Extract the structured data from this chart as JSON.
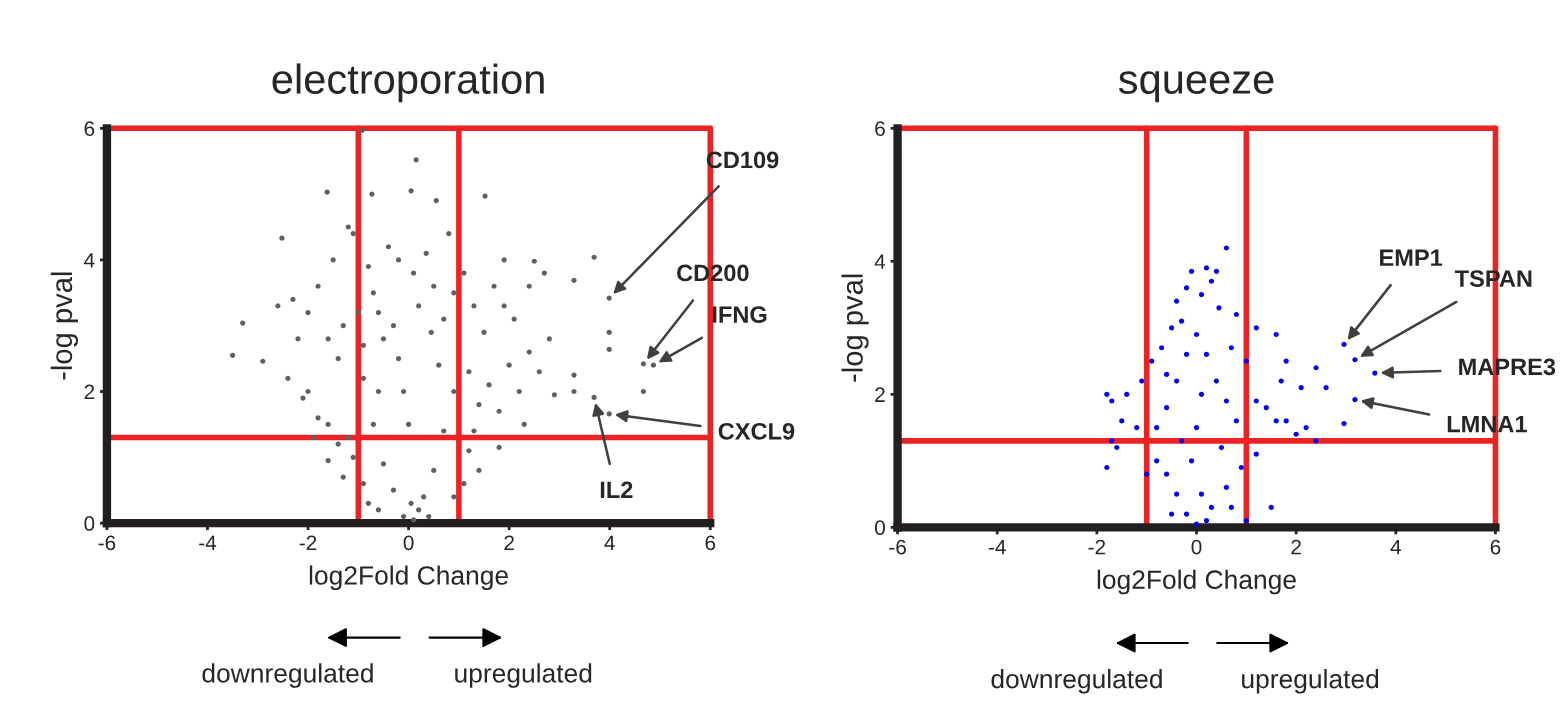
{
  "chart_data": [
    {
      "type": "scatter",
      "title": "electroporation",
      "xlabel": "log2Fold Change",
      "ylabel": "-log pval",
      "xlim": [
        -6,
        6
      ],
      "ylim": [
        0,
        6
      ],
      "xticks": [
        -6,
        -4,
        -2,
        0,
        2,
        4,
        6
      ],
      "yticks": [
        0,
        2,
        4,
        6
      ],
      "grid": false,
      "legend": false,
      "marker": "circle",
      "series": [
        {
          "color": "#606060",
          "x": [
            -0.92,
            0.15,
            -1.62,
            0.05,
            -0.73,
            0.55,
            1.52,
            -2.52,
            -3.3,
            -3.5,
            -2.9,
            3.69,
            2.5,
            3.29,
            3.29,
            3.29,
            2.9,
            3.99,
            3.99,
            4.67,
            1.8,
            3.99,
            4.67,
            4.87,
            3.99,
            3.69,
            -2.6,
            -2.3,
            -2.0,
            -1.8,
            -1.5,
            -1.2,
            -1.1,
            -2.2,
            -2.4,
            -2.0,
            -1.8,
            -2.1,
            -1.6,
            -1.4,
            -1.3,
            -1.6,
            -1.2,
            -1.1,
            -1.6,
            -1.3,
            -0.9,
            -0.8,
            -0.7,
            -0.6,
            -0.5,
            -0.4,
            -0.3,
            -0.2,
            -0.1,
            0.0,
            0.05,
            0.1,
            -0.1,
            0.2,
            -0.3,
            0.3,
            -0.5,
            0.5,
            -0.7,
            0.7,
            -0.9,
            0.9,
            -0.6,
            0.6,
            0.2,
            0.35,
            0.5,
            0.7,
            0.8,
            0.45,
            1.1,
            1.3,
            1.5,
            1.7,
            1.9,
            2.1,
            1.2,
            1.4,
            1.6,
            1.8,
            2.0,
            2.2,
            2.4,
            2.6,
            2.8,
            2.3,
            1.2,
            1.4,
            1.1,
            0.9,
            -0.8,
            -0.6,
            0.4,
            1.3,
            -1.4,
            -1.9,
            2.7,
            2.4,
            1.9,
            -0.2,
            0.1,
            0.9,
            -1.0,
            -0.9
          ],
          "values": [
            5.97,
            5.52,
            5.03,
            5.05,
            5.0,
            4.9,
            4.97,
            4.33,
            3.04,
            2.55,
            2.46,
            4.04,
            3.98,
            3.69,
            2.25,
            2.0,
            1.95,
            2.9,
            2.64,
            2.0,
            1.15,
            3.42,
            2.42,
            2.4,
            1.66,
            1.91,
            3.3,
            3.4,
            3.2,
            3.6,
            4.0,
            4.5,
            4.4,
            2.8,
            2.2,
            2.0,
            1.6,
            1.9,
            1.5,
            2.5,
            3.0,
            2.8,
            1.3,
            1.0,
            0.95,
            0.7,
            0.6,
            3.9,
            3.5,
            3.2,
            2.8,
            4.2,
            3.0,
            2.5,
            2.0,
            1.5,
            0.3,
            0.05,
            0.1,
            0.2,
            0.5,
            0.4,
            0.9,
            0.8,
            1.5,
            1.4,
            2.2,
            2.0,
            2.0,
            2.4,
            3.3,
            4.1,
            3.6,
            3.1,
            4.4,
            2.9,
            3.8,
            3.3,
            2.9,
            3.6,
            3.3,
            3.1,
            2.3,
            1.8,
            2.1,
            1.7,
            2.4,
            2.0,
            2.6,
            2.3,
            2.8,
            1.5,
            1.1,
            0.8,
            0.6,
            0.4,
            0.3,
            0.2,
            0.1,
            1.4,
            1.2,
            1.3,
            3.8,
            3.6,
            4.0,
            4.0,
            3.8,
            3.5,
            3.2,
            2.7
          ]
        }
      ],
      "ref_lines": [
        {
          "axis": "x",
          "value": -1,
          "color": "#ee2222"
        },
        {
          "axis": "x",
          "value": 1,
          "color": "#ee2222"
        },
        {
          "axis": "x",
          "value": 6,
          "color": "#ee2222"
        },
        {
          "axis": "y",
          "value": 1.3,
          "color": "#ee2222"
        },
        {
          "axis": "y",
          "value": 6,
          "color": "#ee2222"
        }
      ],
      "annotations": [
        {
          "text": "CD109",
          "x": 3.99,
          "y": 3.42
        },
        {
          "text": "CD200",
          "x": 4.67,
          "y": 2.42
        },
        {
          "text": "IFNG",
          "x": 4.87,
          "y": 2.4
        },
        {
          "text": "CXCL9",
          "x": 3.99,
          "y": 1.66
        },
        {
          "text": "IL2",
          "x": 3.69,
          "y": 1.91
        },
        "downregulated",
        "upregulated"
      ]
    },
    {
      "type": "scatter",
      "title": "squeeze",
      "xlabel": "log2Fold Change",
      "ylabel": "-log pval",
      "xlim": [
        -6,
        6
      ],
      "ylim": [
        0,
        6
      ],
      "xticks": [
        -6,
        -4,
        -2,
        0,
        2,
        4,
        6
      ],
      "yticks": [
        0,
        2,
        4,
        6
      ],
      "grid": false,
      "legend": false,
      "marker": "circle",
      "series": [
        {
          "color": "#0000ff",
          "x": [
            0.6,
            0.2,
            -0.1,
            0.4,
            -0.2,
            0.1,
            0.45,
            0.8,
            1.2,
            1.6,
            2.4,
            2.1,
            1.7,
            -0.5,
            -0.3,
            -0.7,
            -0.9,
            -1.1,
            -1.4,
            -1.7,
            -1.8,
            -1.5,
            -1.2,
            -1.7,
            -1.6,
            -1.8,
            -1.0,
            -0.8,
            -0.6,
            -0.4,
            -0.2,
            0.0,
            0.2,
            0.4,
            0.6,
            0.8,
            1.0,
            1.2,
            1.4,
            1.6,
            1.8,
            2.0,
            2.2,
            2.4,
            1.2,
            0.9,
            0.6,
            0.3,
            0.0,
            -0.2,
            -0.4,
            -0.6,
            -0.8,
            0.2,
            0.1,
            -0.1,
            0.0,
            0.1,
            -0.3,
            0.5,
            0.7,
            -0.5,
            1.5,
            1.0,
            2.96,
            3.18,
            3.58,
            3.18,
            2.96,
            2.6,
            1.8,
            -0.6,
            0.7,
            -0.4,
            0.3
          ],
          "values": [
            4.2,
            3.9,
            3.85,
            3.85,
            3.6,
            3.5,
            3.3,
            3.2,
            3.0,
            2.9,
            2.4,
            2.1,
            2.2,
            3.0,
            3.1,
            2.7,
            2.5,
            2.2,
            2.0,
            1.9,
            2.0,
            1.6,
            1.5,
            1.3,
            1.2,
            0.9,
            0.8,
            1.5,
            1.8,
            2.2,
            2.6,
            2.9,
            2.6,
            2.2,
            1.9,
            1.6,
            2.5,
            1.9,
            1.8,
            1.6,
            1.6,
            1.4,
            1.5,
            1.3,
            1.1,
            0.9,
            0.6,
            0.3,
            0.05,
            0.2,
            0.5,
            0.8,
            1.0,
            0.1,
            0.5,
            1.0,
            1.5,
            2.0,
            1.3,
            1.2,
            0.3,
            0.2,
            0.3,
            0.1,
            2.75,
            2.52,
            2.32,
            1.92,
            1.56,
            2.1,
            2.5,
            2.3,
            2.7,
            3.4,
            3.7
          ]
        }
      ],
      "ref_lines": [
        {
          "axis": "x",
          "value": -1,
          "color": "#ee2222"
        },
        {
          "axis": "x",
          "value": 1,
          "color": "#ee2222"
        },
        {
          "axis": "x",
          "value": 6,
          "color": "#ee2222"
        },
        {
          "axis": "y",
          "value": 1.3,
          "color": "#ee2222"
        },
        {
          "axis": "y",
          "value": 6,
          "color": "#ee2222"
        }
      ],
      "annotations": [
        {
          "text": "EMP1",
          "x": 2.96,
          "y": 2.75
        },
        {
          "text": "TSPAN",
          "x": 3.18,
          "y": 2.52
        },
        {
          "text": "MAPRE3",
          "x": 3.58,
          "y": 2.32
        },
        {
          "text": "LMNA1",
          "x": 3.18,
          "y": 1.92
        },
        "downregulated",
        "upregulated"
      ]
    }
  ]
}
